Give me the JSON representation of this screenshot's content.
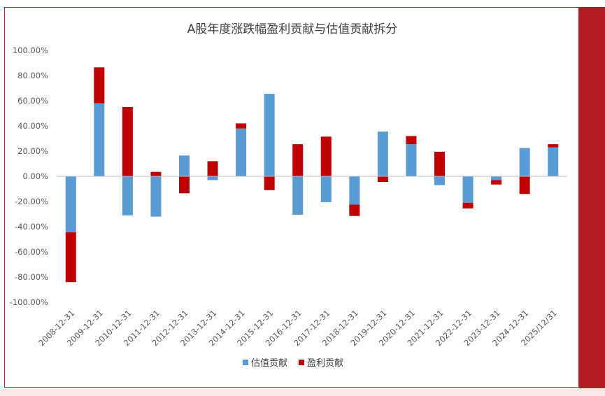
{
  "chart_data": {
    "type": "bar",
    "stacked": true,
    "title": "A股年度涨跌幅盈利贡献与估值贡献拆分",
    "xlabel": "",
    "ylabel": "",
    "ylim": [
      -1.0,
      1.0
    ],
    "yticks": [
      1.0,
      0.8,
      0.6,
      0.4,
      0.2,
      0.0,
      -0.2,
      -0.4,
      -0.6,
      -0.8,
      -1.0
    ],
    "ytick_labels": [
      "100.00%",
      "80.00%",
      "60.00%",
      "40.00%",
      "20.00%",
      "0.00%",
      "-20.00%",
      "-40.00%",
      "-60.00%",
      "-80.00%",
      "-100.00%"
    ],
    "categories": [
      "2008-12-31",
      "2009-12-31",
      "2010-12-31",
      "2011-12-31",
      "2012-12-31",
      "2013-12-31",
      "2014-12-31",
      "2015-12-31",
      "2016-12-31",
      "2017-12-31",
      "2018-12-31",
      "2019-12-31",
      "2020-12-31",
      "2021-12-31",
      "2022-12-31",
      "2023-12-31",
      "2024-12-31",
      "2025/12/31"
    ],
    "series": [
      {
        "name": "估值贡献",
        "color": "#5b9bd5",
        "values": [
          -0.445,
          0.58,
          -0.31,
          -0.32,
          0.165,
          -0.03,
          0.38,
          0.655,
          -0.305,
          -0.205,
          -0.225,
          0.355,
          0.255,
          -0.07,
          -0.21,
          -0.03,
          0.225,
          0.23
        ]
      },
      {
        "name": "盈利贡献",
        "color": "#c00000",
        "values": [
          -0.395,
          0.285,
          0.55,
          0.035,
          -0.135,
          0.12,
          0.04,
          -0.11,
          0.255,
          0.315,
          -0.09,
          -0.045,
          0.065,
          0.195,
          -0.045,
          -0.035,
          -0.14,
          0.025
        ]
      }
    ],
    "legend_position": "bottom",
    "grid": false
  }
}
